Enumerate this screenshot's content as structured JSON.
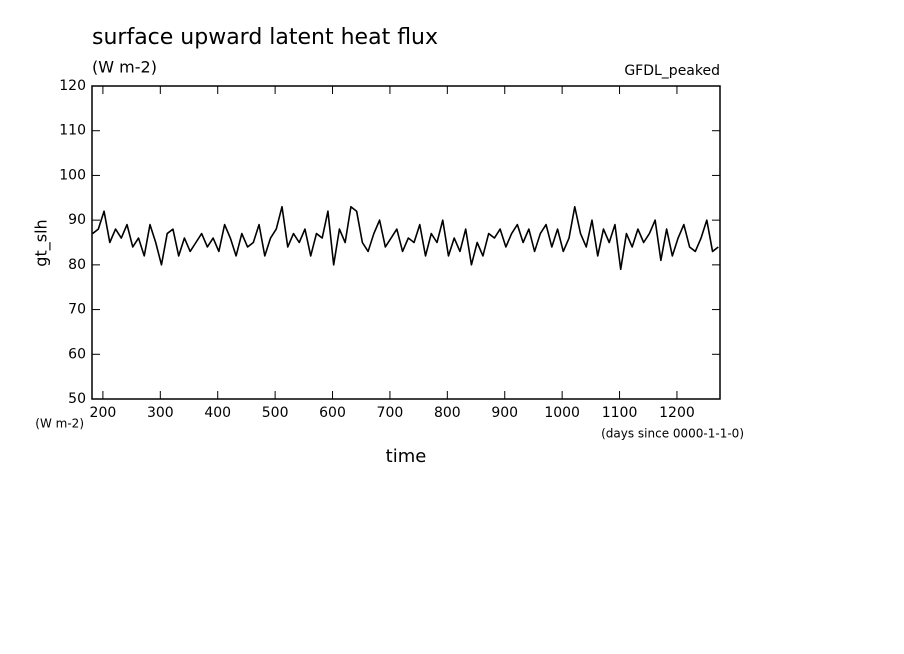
{
  "chart_data": {
    "type": "line",
    "title": "surface upward latent heat flux",
    "subtitle": "(W m-2)",
    "annotation": "GFDL_peaked",
    "y_label": "gt_slh",
    "y_units": "(W m-2)",
    "x_label": "time",
    "x_units": "(days since 0000-1-1-0)",
    "x": [
      182,
      192,
      202,
      212,
      222,
      232,
      242,
      252,
      262,
      272,
      282,
      292,
      302,
      312,
      322,
      332,
      342,
      352,
      362,
      372,
      382,
      392,
      402,
      412,
      422,
      432,
      442,
      452,
      462,
      472,
      482,
      492,
      502,
      512,
      522,
      532,
      542,
      552,
      562,
      572,
      582,
      592,
      602,
      612,
      622,
      632,
      642,
      652,
      662,
      672,
      682,
      692,
      702,
      712,
      722,
      732,
      742,
      752,
      762,
      772,
      782,
      792,
      802,
      812,
      822,
      832,
      842,
      852,
      862,
      872,
      882,
      892,
      902,
      912,
      922,
      932,
      942,
      952,
      962,
      972,
      982,
      992,
      1002,
      1012,
      1022,
      1032,
      1042,
      1052,
      1062,
      1072,
      1082,
      1092,
      1102,
      1112,
      1122,
      1132,
      1142,
      1152,
      1162,
      1172,
      1182,
      1192,
      1202,
      1212,
      1222,
      1232,
      1242,
      1252,
      1262,
      1272
    ],
    "series": [
      {
        "name": "gt_slh",
        "color": "#000000",
        "values": [
          87,
          88,
          92,
          85,
          88,
          86,
          89,
          84,
          86,
          82,
          89,
          85,
          80,
          87,
          88,
          82,
          86,
          83,
          85,
          87,
          84,
          86,
          83,
          89,
          86,
          82,
          87,
          84,
          85,
          89,
          82,
          86,
          88,
          93,
          84,
          87,
          85,
          88,
          82,
          87,
          86,
          92,
          80,
          88,
          85,
          93,
          92,
          85,
          83,
          87,
          90,
          84,
          86,
          88,
          83,
          86,
          85,
          89,
          82,
          87,
          85,
          90,
          82,
          86,
          83,
          88,
          80,
          85,
          82,
          87,
          86,
          88,
          84,
          87,
          89,
          85,
          88,
          83,
          87,
          89,
          84,
          88,
          83,
          86,
          93,
          87,
          84,
          90,
          82,
          88,
          85,
          89,
          79,
          87,
          84,
          88,
          85,
          87,
          90,
          81,
          88,
          82,
          86,
          89,
          84,
          83,
          86,
          90,
          83,
          84
        ]
      }
    ],
    "xlim": [
      181,
      1275
    ],
    "xticks": [
      200,
      300,
      400,
      500,
      600,
      700,
      800,
      900,
      1000,
      1100,
      1200
    ],
    "ylim": [
      50,
      120
    ],
    "yticks": [
      50,
      60,
      70,
      80,
      90,
      100,
      110,
      120
    ]
  }
}
